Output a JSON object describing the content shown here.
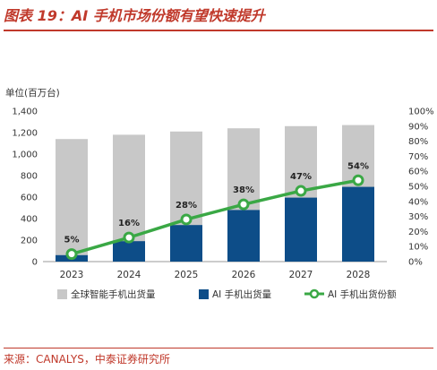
{
  "figure_title": "图表 19：AI 手机市场份额有望快速提升",
  "unit_label": "单位(百万台)",
  "source_text": "来源：CANALYS，中泰证券研究所",
  "colors": {
    "title_red": "#c0392b",
    "total_bar": "#c8c8c8",
    "ai_bar": "#0d4d88",
    "share_line": "#3aa845"
  },
  "chart_data": {
    "type": "bar",
    "categories": [
      "2023",
      "2024",
      "2025",
      "2026",
      "2027",
      "2028"
    ],
    "series": [
      {
        "name": "全球智能手机出货量",
        "kind": "bar",
        "axis": "left",
        "values": [
          1140,
          1180,
          1210,
          1240,
          1260,
          1270
        ]
      },
      {
        "name": "AI 手机出货量",
        "kind": "bar",
        "axis": "left",
        "values": [
          60,
          190,
          340,
          480,
          595,
          695
        ]
      },
      {
        "name": "AI 手机出货份额",
        "kind": "line",
        "axis": "right",
        "values": [
          5,
          16,
          28,
          38,
          47,
          54
        ],
        "labels": [
          "5%",
          "16%",
          "28%",
          "38%",
          "47%",
          "54%"
        ]
      }
    ],
    "ylim": [
      0,
      1400
    ],
    "yticks": [
      "0",
      "200",
      "400",
      "600",
      "800",
      "1,000",
      "1,200",
      "1,400"
    ],
    "y2lim": [
      0,
      100
    ],
    "y2ticks": [
      "0%",
      "10%",
      "20%",
      "30%",
      "40%",
      "50%",
      "60%",
      "70%",
      "80%",
      "90%",
      "100%"
    ],
    "legend_position": "bottom",
    "grid": false
  }
}
